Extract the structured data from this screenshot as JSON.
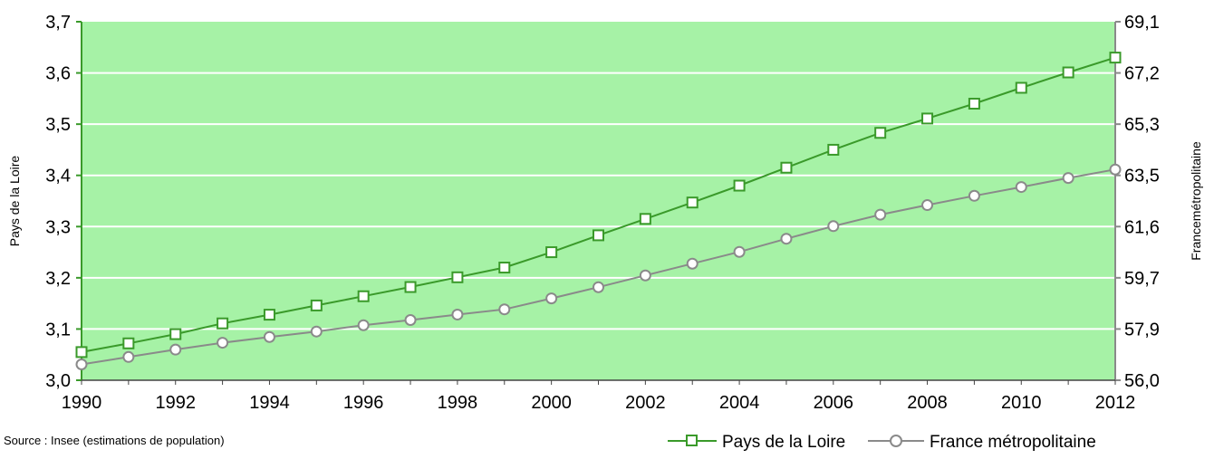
{
  "chart_data": {
    "type": "line",
    "title": "",
    "xlabel": "",
    "x": [
      1990,
      1991,
      1992,
      1993,
      1994,
      1995,
      1996,
      1997,
      1998,
      1999,
      2000,
      2001,
      2002,
      2003,
      2004,
      2005,
      2006,
      2007,
      2008,
      2009,
      2010,
      2011,
      2012
    ],
    "x_ticks": [
      "1990",
      "1992",
      "1994",
      "1996",
      "1998",
      "2000",
      "2002",
      "2004",
      "2006",
      "2008",
      "2010",
      "2012"
    ],
    "y_left": {
      "label": "Pays de la Loire",
      "range": [
        3.0,
        3.7
      ],
      "ticks": [
        "3,0",
        "3,1",
        "3,2",
        "3,3",
        "3,4",
        "3,5",
        "3,6",
        "3,7"
      ]
    },
    "y_right": {
      "label": "Francemétropolitaine",
      "range": [
        56.0,
        69.1
      ],
      "ticks": [
        "56,0",
        "57,9",
        "59,7",
        "61,6",
        "63,5",
        "65,3",
        "67,2",
        "69,1"
      ]
    },
    "series": [
      {
        "name": "Pays de la Loire",
        "axis": "left",
        "color": "#3a9a2a",
        "marker": "square",
        "values": [
          3.055,
          3.072,
          3.09,
          3.111,
          3.128,
          3.146,
          3.164,
          3.182,
          3.201,
          3.22,
          3.25,
          3.283,
          3.315,
          3.347,
          3.38,
          3.415,
          3.45,
          3.483,
          3.511,
          3.54,
          3.571,
          3.601,
          3.63
        ]
      },
      {
        "name": "France métropolitaine",
        "axis": "right",
        "color": "#8a8a8a",
        "marker": "circle",
        "values": [
          56.58,
          56.85,
          57.12,
          57.37,
          57.58,
          57.78,
          58.01,
          58.2,
          58.4,
          58.59,
          58.99,
          59.4,
          59.83,
          60.26,
          60.69,
          61.17,
          61.63,
          62.05,
          62.4,
          62.74,
          63.06,
          63.39,
          63.7
        ]
      }
    ],
    "grid": true,
    "background_color": "#a6f2a6",
    "legend_position": "bottom-right",
    "source": "Source : Insee (estimations de population)"
  }
}
